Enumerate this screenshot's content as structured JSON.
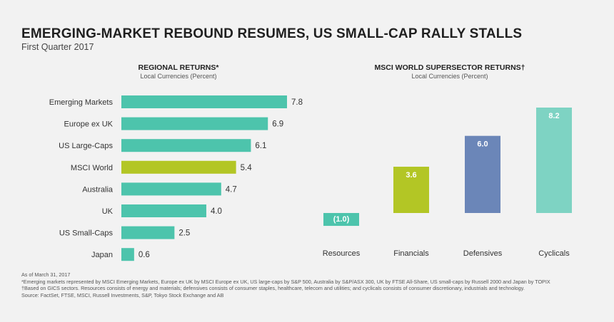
{
  "title": "EMERGING-MARKET REBOUND RESUMES, US SMALL-CAP RALLY STALLS",
  "subtitle": "First Quarter 2017",
  "colors": {
    "teal": "#4dc4ac",
    "lime": "#b3c625",
    "blue": "#6b86b8",
    "light_teal": "#7ed3c3"
  },
  "chart_data": [
    {
      "type": "bar",
      "orientation": "horizontal",
      "title": "REGIONAL RETURNS*",
      "subtitle": "Local Currencies (Percent)",
      "categories": [
        "Emerging Markets",
        "Europe ex UK",
        "US Large-Caps",
        "MSCI World",
        "Australia",
        "UK",
        "US Small-Caps",
        "Japan"
      ],
      "values": [
        7.8,
        6.9,
        6.1,
        5.4,
        4.7,
        4.0,
        2.5,
        0.6
      ],
      "labels": [
        "7.8",
        "6.9",
        "6.1",
        "5.4",
        "4.7",
        "4.0",
        "2.5",
        "0.6"
      ],
      "bar_colors": [
        "#4dc4ac",
        "#4dc4ac",
        "#4dc4ac",
        "#b3c625",
        "#4dc4ac",
        "#4dc4ac",
        "#4dc4ac",
        "#4dc4ac"
      ],
      "xlim": [
        0,
        8
      ],
      "grid": false
    },
    {
      "type": "bar",
      "orientation": "vertical",
      "title": "MSCI WORLD SUPERSECTOR RETURNS†",
      "subtitle": "Local Currencies (Percent)",
      "categories": [
        "Resources",
        "Financials",
        "Defensives",
        "Cyclicals"
      ],
      "values": [
        -1.0,
        3.6,
        6.0,
        8.2
      ],
      "labels": [
        "(1.0)",
        "3.6",
        "6.0",
        "8.2"
      ],
      "bar_colors": [
        "#4dc4ac",
        "#b3c625",
        "#6b86b8",
        "#7ed3c3"
      ],
      "ylim": [
        -1.5,
        8.5
      ],
      "grid": false
    }
  ],
  "notes": [
    "As of March 31, 2017",
    "*Emerging markets represented by MSCI Emerging Markets, Europe ex UK by MSCI Europe ex UK, US large-caps by S&P 500, Australia by S&P/ASX 300, UK by FTSE All-Share, US small-caps by Russell 2000 and Japan by TOPIX",
    "†Based on GICS sectors. Resources consists of energy and materials; defensives consists of consumer staples, healthcare, telecom and utilities; and cyclicals consists of consumer discretionary, industrials and technology.",
    "Source: FactSet, FTSE, MSCI, Russell Investments, S&P, Tokyo Stock Exchange and AB"
  ]
}
